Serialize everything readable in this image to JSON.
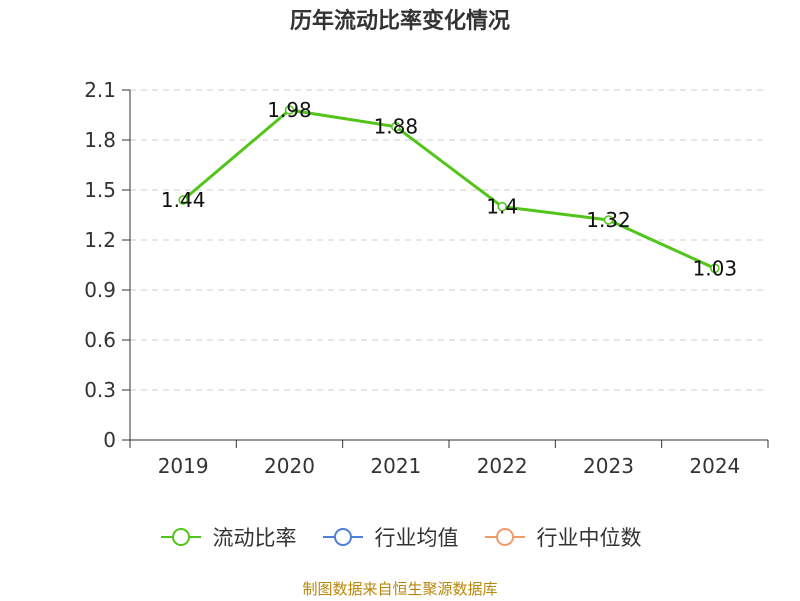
{
  "colors": {
    "primary": "#52c41a",
    "mean": "#4f7fd8",
    "median": "#f39a6b"
  },
  "legend": [
    {
      "label": "流动比率",
      "color": "#52c41a"
    },
    {
      "label": "行业均值",
      "color": "#4f7fd8"
    },
    {
      "label": "行业中位数",
      "color": "#f39a6b"
    }
  ],
  "source": "制图数据来自恒生聚源数据库",
  "chart_data": {
    "type": "line",
    "title": "历年流动比率变化情况",
    "xlabel": "",
    "ylabel": "",
    "categories": [
      "2019",
      "2020",
      "2021",
      "2022",
      "2023",
      "2024"
    ],
    "ylim": [
      0,
      2.1
    ],
    "yticks": [
      0,
      0.3,
      0.6,
      0.9,
      1.2,
      1.5,
      1.8,
      2.1
    ],
    "ytick_labels": [
      "0",
      "0.3",
      "0.6",
      "0.9",
      "1.2",
      "1.5",
      "1.8",
      "2.1"
    ],
    "grid": true,
    "legend_position": "bottom",
    "series": [
      {
        "name": "流动比率",
        "values": [
          1.44,
          1.98,
          1.88,
          1.4,
          1.32,
          1.03
        ],
        "labels": [
          "1.44",
          "1.98",
          "1.88",
          "1.4",
          "1.32",
          "1.03"
        ]
      }
    ]
  }
}
